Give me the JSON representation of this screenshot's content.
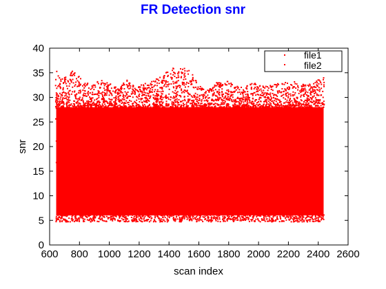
{
  "chart_data": {
    "type": "scatter",
    "title": "FR Detection snr",
    "title_color": "#0000ff",
    "xlabel": "scan index",
    "ylabel": "snr",
    "xlim": [
      600,
      2600
    ],
    "ylim": [
      0,
      40
    ],
    "xticks": [
      600,
      800,
      1000,
      1200,
      1400,
      1600,
      1800,
      2000,
      2200,
      2400,
      2600
    ],
    "yticks": [
      0,
      5,
      10,
      15,
      20,
      25,
      30,
      35,
      40
    ],
    "grid": false,
    "legend_position": "top-right",
    "series": [
      {
        "name": "file1",
        "color": "#ff0000",
        "marker": "dot"
      },
      {
        "name": "file2",
        "color": "#ff0000",
        "marker": "dot"
      }
    ],
    "data_summary": {
      "x_range": [
        640,
        2440
      ],
      "y_floor": 5,
      "density_band": [
        6,
        28
      ],
      "upper_envelope": [
        [
          650,
          35.5
        ],
        [
          700,
          34.0
        ],
        [
          760,
          35.5
        ],
        [
          820,
          33.5
        ],
        [
          880,
          32.5
        ],
        [
          940,
          33.5
        ],
        [
          1000,
          33.0
        ],
        [
          1060,
          32.0
        ],
        [
          1120,
          33.5
        ],
        [
          1180,
          32.0
        ],
        [
          1240,
          33.0
        ],
        [
          1300,
          33.5
        ],
        [
          1360,
          34.5
        ],
        [
          1420,
          36.0
        ],
        [
          1480,
          36.2
        ],
        [
          1540,
          35.5
        ],
        [
          1600,
          32.5
        ],
        [
          1660,
          31.5
        ],
        [
          1720,
          33.0
        ],
        [
          1780,
          33.5
        ],
        [
          1840,
          32.5
        ],
        [
          1900,
          32.0
        ],
        [
          1960,
          33.0
        ],
        [
          2020,
          32.5
        ],
        [
          2080,
          32.5
        ],
        [
          2140,
          33.0
        ],
        [
          2200,
          33.5
        ],
        [
          2260,
          33.0
        ],
        [
          2320,
          32.5
        ],
        [
          2380,
          33.5
        ],
        [
          2430,
          34.0
        ]
      ]
    }
  }
}
